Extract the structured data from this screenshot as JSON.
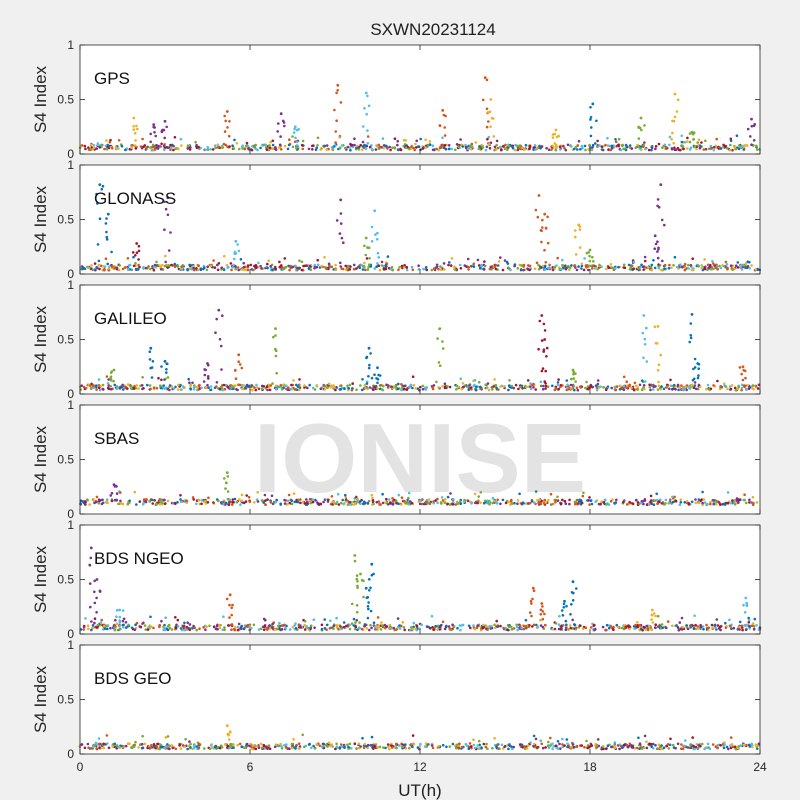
{
  "chart_data": {
    "type": "scatter",
    "title": "SXWN20231124",
    "xlabel": "UT(h)",
    "ylabel": "S4 Index",
    "xlim": [
      0,
      24
    ],
    "xticks": [
      "0",
      "6",
      "12",
      "18",
      "24"
    ],
    "ylim": [
      0,
      1
    ],
    "yticks": [
      "0",
      "0.5",
      "1"
    ],
    "grid": false,
    "legend": "none",
    "watermark": "IONISE",
    "series_colors": [
      "#0072bd",
      "#d95319",
      "#edb120",
      "#7e2f8e",
      "#77ac30",
      "#4dbeee",
      "#a2142f"
    ],
    "panels": [
      {
        "label": "GPS",
        "baseline": 0.06,
        "spikes": [
          {
            "x": 1.9,
            "y": 0.33,
            "c": 2
          },
          {
            "x": 2.6,
            "y": 0.27,
            "c": 3
          },
          {
            "x": 3.0,
            "y": 0.3,
            "c": 3
          },
          {
            "x": 5.2,
            "y": 0.39,
            "c": 1
          },
          {
            "x": 7.1,
            "y": 0.37,
            "c": 3
          },
          {
            "x": 7.6,
            "y": 0.25,
            "c": 5
          },
          {
            "x": 9.1,
            "y": 0.63,
            "c": 1
          },
          {
            "x": 10.1,
            "y": 0.56,
            "c": 5
          },
          {
            "x": 12.8,
            "y": 0.4,
            "c": 1
          },
          {
            "x": 14.3,
            "y": 0.7,
            "c": 1
          },
          {
            "x": 14.5,
            "y": 0.5,
            "c": 2
          },
          {
            "x": 16.8,
            "y": 0.22,
            "c": 2
          },
          {
            "x": 18.1,
            "y": 0.46,
            "c": 0
          },
          {
            "x": 19.8,
            "y": 0.33,
            "c": 4
          },
          {
            "x": 21.0,
            "y": 0.55,
            "c": 2
          },
          {
            "x": 21.6,
            "y": 0.2,
            "c": 4
          },
          {
            "x": 23.7,
            "y": 0.32,
            "c": 3
          }
        ]
      },
      {
        "label": "GLONASS",
        "baseline": 0.06,
        "spikes": [
          {
            "x": 0.7,
            "y": 0.82,
            "c": 0
          },
          {
            "x": 1.0,
            "y": 0.55,
            "c": 0
          },
          {
            "x": 2.0,
            "y": 0.28,
            "c": 6
          },
          {
            "x": 3.1,
            "y": 0.7,
            "c": 3
          },
          {
            "x": 5.5,
            "y": 0.3,
            "c": 5
          },
          {
            "x": 9.2,
            "y": 0.68,
            "c": 3
          },
          {
            "x": 10.4,
            "y": 0.58,
            "c": 5
          },
          {
            "x": 10.1,
            "y": 0.33,
            "c": 4
          },
          {
            "x": 16.2,
            "y": 0.72,
            "c": 1
          },
          {
            "x": 16.4,
            "y": 0.55,
            "c": 1
          },
          {
            "x": 17.6,
            "y": 0.45,
            "c": 2
          },
          {
            "x": 18.0,
            "y": 0.22,
            "c": 4
          },
          {
            "x": 20.5,
            "y": 0.82,
            "c": 3
          },
          {
            "x": 20.3,
            "y": 0.35,
            "c": 3
          }
        ]
      },
      {
        "label": "GALILEO",
        "baseline": 0.06,
        "spikes": [
          {
            "x": 1.2,
            "y": 0.22,
            "c": 4
          },
          {
            "x": 2.5,
            "y": 0.42,
            "c": 0
          },
          {
            "x": 3.0,
            "y": 0.3,
            "c": 0
          },
          {
            "x": 4.5,
            "y": 0.28,
            "c": 3
          },
          {
            "x": 4.9,
            "y": 0.77,
            "c": 3
          },
          {
            "x": 5.6,
            "y": 0.36,
            "c": 1
          },
          {
            "x": 6.9,
            "y": 0.6,
            "c": 4
          },
          {
            "x": 10.2,
            "y": 0.42,
            "c": 0
          },
          {
            "x": 10.5,
            "y": 0.24,
            "c": 0
          },
          {
            "x": 12.7,
            "y": 0.6,
            "c": 4
          },
          {
            "x": 16.3,
            "y": 0.72,
            "c": 6
          },
          {
            "x": 16.4,
            "y": 0.5,
            "c": 6
          },
          {
            "x": 17.4,
            "y": 0.22,
            "c": 4
          },
          {
            "x": 19.9,
            "y": 0.72,
            "c": 5
          },
          {
            "x": 20.4,
            "y": 0.62,
            "c": 2
          },
          {
            "x": 21.6,
            "y": 0.73,
            "c": 0
          },
          {
            "x": 21.8,
            "y": 0.28,
            "c": 0
          },
          {
            "x": 23.4,
            "y": 0.25,
            "c": 1
          }
        ]
      },
      {
        "label": "SBAS",
        "baseline": 0.11,
        "spikes": [
          {
            "x": 1.2,
            "y": 0.27,
            "c": 3
          },
          {
            "x": 5.2,
            "y": 0.38,
            "c": 4
          }
        ]
      },
      {
        "label": "BDS NGEO",
        "baseline": 0.06,
        "spikes": [
          {
            "x": 0.4,
            "y": 0.79,
            "c": 3
          },
          {
            "x": 0.6,
            "y": 0.5,
            "c": 3
          },
          {
            "x": 1.4,
            "y": 0.22,
            "c": 5
          },
          {
            "x": 5.3,
            "y": 0.36,
            "c": 1
          },
          {
            "x": 9.7,
            "y": 0.72,
            "c": 4
          },
          {
            "x": 9.9,
            "y": 0.55,
            "c": 4
          },
          {
            "x": 10.3,
            "y": 0.64,
            "c": 0
          },
          {
            "x": 10.1,
            "y": 0.42,
            "c": 0
          },
          {
            "x": 16.0,
            "y": 0.42,
            "c": 1
          },
          {
            "x": 16.3,
            "y": 0.28,
            "c": 1
          },
          {
            "x": 17.4,
            "y": 0.48,
            "c": 0
          },
          {
            "x": 17.1,
            "y": 0.3,
            "c": 0
          },
          {
            "x": 20.2,
            "y": 0.22,
            "c": 2
          },
          {
            "x": 23.5,
            "y": 0.33,
            "c": 5
          }
        ]
      },
      {
        "label": "BDS GEO",
        "baseline": 0.07,
        "spikes": [
          {
            "x": 5.2,
            "y": 0.26,
            "c": 2
          }
        ]
      }
    ]
  }
}
